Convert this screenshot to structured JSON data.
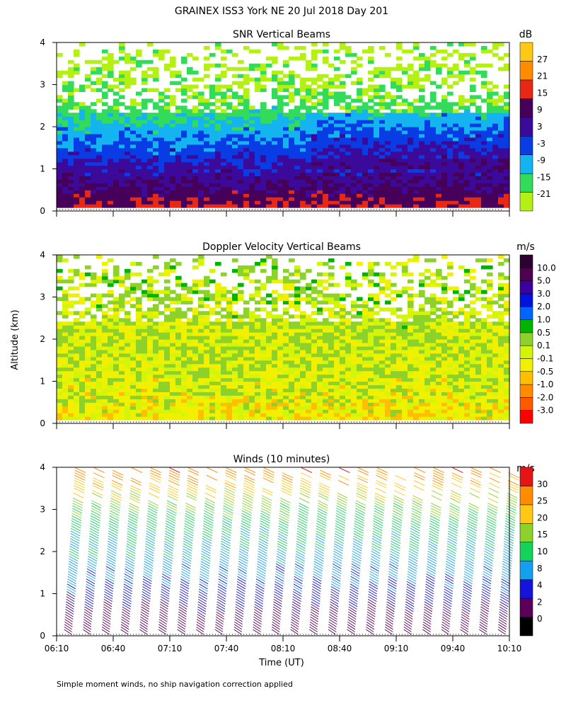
{
  "figure": {
    "title": "GRAINEX ISS3 York NE  20 Jul 2018 Day 201",
    "ylabel": "Altitude (km)",
    "xlabel": "Time (UT)",
    "footnote": "Simple moment winds, no ship navigation correction applied"
  },
  "chart_data": [
    {
      "type": "heatmap",
      "title": "SNR Vertical Beams",
      "colorbar_unit": "dB",
      "colorbar_ticks": [
        "27",
        "21",
        "15",
        "9",
        "3",
        "-3",
        "-9",
        "-15",
        "-21"
      ],
      "colorscale": [
        "#b4f014",
        "#32dc5a",
        "#14b4f0",
        "#0a3ce6",
        "#3c0a9b",
        "#46005a",
        "#e62814",
        "#ff8c00",
        "#ffc814"
      ],
      "x_range": [
        "06:10",
        "10:10"
      ],
      "ylim": [
        0,
        4
      ],
      "yticks": [
        "0",
        "1",
        "2",
        "3",
        "4"
      ],
      "profile": [
        {
          "alt": 0.15,
          "snr": 12
        },
        {
          "alt": 0.4,
          "snr": 9
        },
        {
          "alt": 0.8,
          "snr": 4
        },
        {
          "alt": 1.2,
          "snr": 0
        },
        {
          "alt": 1.6,
          "snr": -5
        },
        {
          "alt": 2.0,
          "snr": -10
        },
        {
          "alt": 2.5,
          "snr": -16
        },
        {
          "alt": 3.0,
          "snr": -19
        },
        {
          "alt": 3.5,
          "snr": -20
        },
        {
          "alt": 3.9,
          "snr": -21
        }
      ]
    },
    {
      "type": "heatmap",
      "title": "Doppler Velocity Vertical Beams",
      "colorbar_unit": "m/s",
      "colorbar_ticks": [
        "10.0",
        "5.0",
        "3.0",
        "2.0",
        "1.0",
        "0.5",
        "0.1",
        "-0.1",
        "-0.5",
        "-1.0",
        "-2.0",
        "-3.0"
      ],
      "colorscale": [
        "#ff0000",
        "#ff5a00",
        "#ff8c00",
        "#ffbe00",
        "#f0f000",
        "#d2f50a",
        "#8cd22a",
        "#00b400",
        "#0064ff",
        "#0014dc",
        "#3c00a0",
        "#500050",
        "#2d0032"
      ],
      "x_range": [
        "06:10",
        "10:10"
      ],
      "ylim": [
        0,
        4
      ],
      "yticks": [
        "0",
        "1",
        "2",
        "3",
        "4"
      ],
      "profile": [
        {
          "alt": 0.2,
          "w": -0.3
        },
        {
          "alt": 0.8,
          "w": -0.1
        },
        {
          "alt": 1.5,
          "w": 0.0
        },
        {
          "alt": 2.2,
          "w": 0.05
        },
        {
          "alt": 2.8,
          "w": 0.1
        },
        {
          "alt": 3.6,
          "w": 0.2
        }
      ]
    },
    {
      "type": "scatter",
      "title": "Winds (10 minutes)",
      "colorbar_unit": "m/s",
      "colorbar_ticks": [
        "30",
        "25",
        "20",
        "15",
        "10",
        "8",
        "4",
        "2",
        "0"
      ],
      "colorscale": [
        "#000000",
        "#5a005a",
        "#1414dc",
        "#14a0f0",
        "#14d25a",
        "#8cd22a",
        "#ffc814",
        "#ff8c00",
        "#e61414"
      ],
      "xticks": [
        "06:10",
        "06:40",
        "07:10",
        "07:40",
        "08:10",
        "08:40",
        "09:10",
        "09:40",
        "10:10"
      ],
      "ylim": [
        0,
        4
      ],
      "yticks": [
        "0",
        "1",
        "2",
        "3",
        "4"
      ],
      "profile": [
        {
          "alt": 0.2,
          "speed": 4
        },
        {
          "alt": 0.6,
          "speed": 6
        },
        {
          "alt": 1.0,
          "speed": 9
        },
        {
          "alt": 1.5,
          "speed": 12
        },
        {
          "alt": 2.0,
          "speed": 14
        },
        {
          "alt": 2.5,
          "speed": 16
        },
        {
          "alt": 3.0,
          "speed": 18
        },
        {
          "alt": 3.5,
          "speed": 24
        },
        {
          "alt": 4.0,
          "speed": 29
        }
      ]
    }
  ]
}
